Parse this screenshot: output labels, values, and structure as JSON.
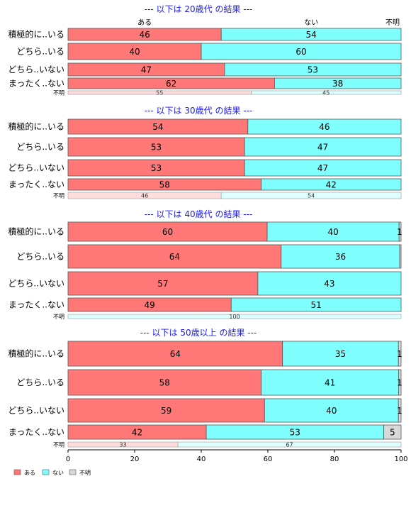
{
  "chart_data": {
    "type": "bar",
    "orientation": "horizontal",
    "stacked": "percent",
    "xlim": [
      0,
      100
    ],
    "xticks": [
      0,
      20,
      40,
      60,
      80,
      100
    ],
    "column_headers": [
      "ある",
      "ない",
      "不明"
    ],
    "legend": {
      "position": "bottom-left",
      "entries": [
        "ある",
        "ない",
        "不明"
      ]
    },
    "colors": {
      "ある": "#ff7777",
      "ない": "#80ffff",
      "不明": "#d9d9d9",
      "ある_light": "#ffdddd",
      "ない_light": "#ddffff",
      "frame": "#555555",
      "title": "#1a1aff"
    },
    "panels": [
      {
        "title": "--- 以下は 20歳代 の結果 ---",
        "categories": [
          "積極的に..いる",
          "どちら..いる",
          "どちら..いない",
          "まったく..ない",
          "不明"
        ],
        "series": [
          {
            "name": "ある",
            "values": [
              46,
              40,
              47,
              62,
              55
            ]
          },
          {
            "name": "ない",
            "values": [
              54,
              60,
              53,
              38,
              45
            ]
          },
          {
            "name": "不明",
            "values": [
              0,
              0,
              0,
              0,
              0
            ]
          }
        ],
        "labels": [
          [
            "46",
            "54",
            ""
          ],
          [
            "40",
            "60",
            ""
          ],
          [
            "47",
            "53",
            ""
          ],
          [
            "62",
            "38",
            ""
          ],
          [
            "55",
            "45",
            ""
          ]
        ]
      },
      {
        "title": "--- 以下は 30歳代 の結果 ---",
        "categories": [
          "積極的に..いる",
          "どちら..いる",
          "どちら..いない",
          "まったく..ない",
          "不明"
        ],
        "series": [
          {
            "name": "ある",
            "values": [
              54,
              53,
              53,
              58,
              46
            ]
          },
          {
            "name": "ない",
            "values": [
              46,
              47,
              47,
              42,
              54
            ]
          },
          {
            "name": "不明",
            "values": [
              0,
              0,
              0,
              0,
              0
            ]
          }
        ],
        "labels": [
          [
            "54",
            "46",
            ""
          ],
          [
            "53",
            "47",
            ""
          ],
          [
            "53",
            "47",
            ""
          ],
          [
            "58",
            "42",
            ""
          ],
          [
            "46",
            "54",
            ""
          ]
        ]
      },
      {
        "title": "--- 以下は 40歳代 の結果 ---",
        "categories": [
          "積極的に..いる",
          "どちら..いる",
          "どちら..いない",
          "まったく..ない",
          "不明"
        ],
        "series": [
          {
            "name": "ある",
            "values": [
              59.8,
              64,
              57,
              49,
              0
            ]
          },
          {
            "name": "ない",
            "values": [
              39.6,
              35.6,
              43,
              51,
              100
            ]
          },
          {
            "name": "不明",
            "values": [
              0.6,
              0.4,
              0,
              0,
              0
            ]
          }
        ],
        "labels": [
          [
            "60",
            "40",
            "1"
          ],
          [
            "64",
            "36",
            ""
          ],
          [
            "57",
            "43",
            ""
          ],
          [
            "49",
            "51",
            ""
          ],
          [
            "",
            "100",
            ""
          ]
        ]
      },
      {
        "title": "--- 以下は 50歳以上 の結果 ---",
        "categories": [
          "積極的に..いる",
          "どちら..いる",
          "どちら..いない",
          "まったく..ない",
          "不明"
        ],
        "series": [
          {
            "name": "ある",
            "values": [
              64.4,
              58,
              59,
              41.5,
              33
            ]
          },
          {
            "name": "ない",
            "values": [
              34.8,
              41.3,
              40.2,
              53.3,
              67
            ]
          },
          {
            "name": "不明",
            "values": [
              0.8,
              0.7,
              0.8,
              5.2,
              0
            ]
          }
        ],
        "labels": [
          [
            "64",
            "35",
            "1"
          ],
          [
            "58",
            "41",
            "1"
          ],
          [
            "59",
            "40",
            "1"
          ],
          [
            "42",
            "53",
            "5"
          ],
          [
            "33",
            "67",
            ""
          ]
        ]
      }
    ]
  }
}
